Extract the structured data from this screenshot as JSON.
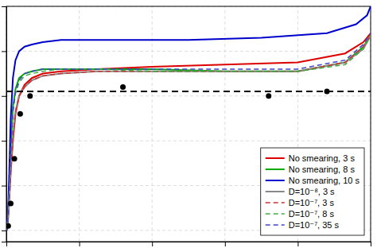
{
  "chart_data": {
    "type": "line",
    "xlim": [
      0.0,
      1.0
    ],
    "ylim": [
      -0.05,
      1.0
    ],
    "xticks": [
      0.0,
      0.2,
      0.4,
      0.6,
      0.8,
      1.0
    ],
    "yticks": [
      0.0,
      0.2,
      0.4,
      0.6,
      0.8,
      1.0
    ],
    "grid": true,
    "tick_labels": false,
    "legend": "lower right",
    "series": [
      {
        "name": "No smearing, 3 s",
        "color": "#dd0000",
        "line_style": "solid",
        "x": [
          0.001,
          0.003,
          0.005,
          0.008,
          0.012,
          0.018,
          0.025,
          0.035,
          0.05,
          0.07,
          0.1,
          0.15,
          0.25,
          0.4,
          0.6,
          0.8,
          0.93,
          0.98,
          1.0
        ],
        "values": [
          0.0,
          0.02,
          0.06,
          0.14,
          0.26,
          0.4,
          0.52,
          0.6,
          0.65,
          0.68,
          0.7,
          0.71,
          0.72,
          0.73,
          0.74,
          0.75,
          0.79,
          0.84,
          0.88
        ]
      },
      {
        "name": "No smearing, 8 s",
        "color": "#00aa00",
        "line_style": "solid",
        "x": [
          0.001,
          0.003,
          0.005,
          0.008,
          0.012,
          0.018,
          0.025,
          0.035,
          0.05,
          0.07,
          0.1,
          0.15,
          0.25,
          0.4,
          0.6,
          0.8,
          0.93,
          0.98,
          1.0
        ],
        "values": [
          0.0,
          0.02,
          0.08,
          0.2,
          0.38,
          0.55,
          0.63,
          0.68,
          0.7,
          0.71,
          0.72,
          0.72,
          0.72,
          0.72,
          0.71,
          0.71,
          0.75,
          0.82,
          0.87
        ]
      },
      {
        "name": "No smearing, 10 s",
        "color": "#0000cc",
        "line_style": "solid",
        "x": [
          0.001,
          0.003,
          0.005,
          0.008,
          0.012,
          0.018,
          0.025,
          0.035,
          0.05,
          0.07,
          0.1,
          0.15,
          0.2,
          0.3,
          0.5,
          0.7,
          0.88,
          0.96,
          0.99,
          1.0
        ],
        "values": [
          0.0,
          0.03,
          0.1,
          0.26,
          0.5,
          0.68,
          0.76,
          0.8,
          0.82,
          0.83,
          0.84,
          0.85,
          0.85,
          0.85,
          0.85,
          0.86,
          0.88,
          0.92,
          0.96,
          1.0
        ]
      },
      {
        "name": "D=10⁻⁸, 3 s",
        "color": "#888888",
        "line_style": "solid",
        "x": [
          0.001,
          0.003,
          0.005,
          0.008,
          0.012,
          0.018,
          0.025,
          0.035,
          0.05,
          0.07,
          0.1,
          0.15,
          0.25,
          0.4,
          0.6,
          0.8,
          0.93,
          0.98,
          1.0
        ],
        "values": [
          0.0,
          0.02,
          0.06,
          0.15,
          0.28,
          0.42,
          0.53,
          0.6,
          0.64,
          0.67,
          0.69,
          0.7,
          0.71,
          0.71,
          0.71,
          0.71,
          0.75,
          0.81,
          0.87
        ]
      },
      {
        "name": "D=10⁻⁷, 3 s",
        "color": "#cc3333",
        "line_style": "dashed",
        "x": [
          0.001,
          0.003,
          0.005,
          0.008,
          0.012,
          0.018,
          0.025,
          0.035,
          0.05,
          0.07,
          0.1,
          0.15,
          0.25,
          0.4,
          0.6,
          0.8,
          0.93,
          0.98,
          1.0
        ],
        "values": [
          0.0,
          0.02,
          0.06,
          0.15,
          0.28,
          0.42,
          0.53,
          0.6,
          0.64,
          0.67,
          0.69,
          0.7,
          0.71,
          0.71,
          0.71,
          0.71,
          0.75,
          0.82,
          0.87
        ]
      },
      {
        "name": "D=10⁻⁷, 8 s",
        "color": "#44aa44",
        "line_style": "dashed",
        "x": [
          0.001,
          0.003,
          0.005,
          0.008,
          0.012,
          0.018,
          0.025,
          0.035,
          0.05,
          0.07,
          0.1,
          0.15,
          0.25,
          0.4,
          0.6,
          0.8,
          0.93,
          0.98,
          1.0
        ],
        "values": [
          0.0,
          0.02,
          0.07,
          0.18,
          0.36,
          0.53,
          0.61,
          0.66,
          0.69,
          0.7,
          0.71,
          0.72,
          0.72,
          0.71,
          0.71,
          0.71,
          0.74,
          0.81,
          0.87
        ]
      },
      {
        "name": "D=10⁻⁷, 35 s",
        "color": "#4444cc",
        "line_style": "dashed",
        "x": [
          0.001,
          0.003,
          0.005,
          0.008,
          0.012,
          0.018,
          0.025,
          0.035,
          0.05,
          0.07,
          0.1,
          0.15,
          0.25,
          0.4,
          0.6,
          0.8,
          0.93,
          0.98,
          1.0
        ],
        "values": [
          0.0,
          0.02,
          0.07,
          0.18,
          0.36,
          0.53,
          0.62,
          0.67,
          0.7,
          0.71,
          0.72,
          0.72,
          0.72,
          0.72,
          0.72,
          0.72,
          0.76,
          0.83,
          0.88
        ]
      },
      {
        "type": "scatter",
        "color": "#000000",
        "marker": "circle",
        "x": [
          0.005,
          0.012,
          0.022,
          0.038,
          0.065,
          0.32,
          0.72,
          0.88
        ],
        "values": [
          0.02,
          0.12,
          0.32,
          0.52,
          0.6,
          0.64,
          0.6,
          0.62
        ]
      },
      {
        "type": "hline",
        "color": "#000000",
        "line_style": "dashed",
        "values": [
          0.62
        ]
      }
    ]
  }
}
